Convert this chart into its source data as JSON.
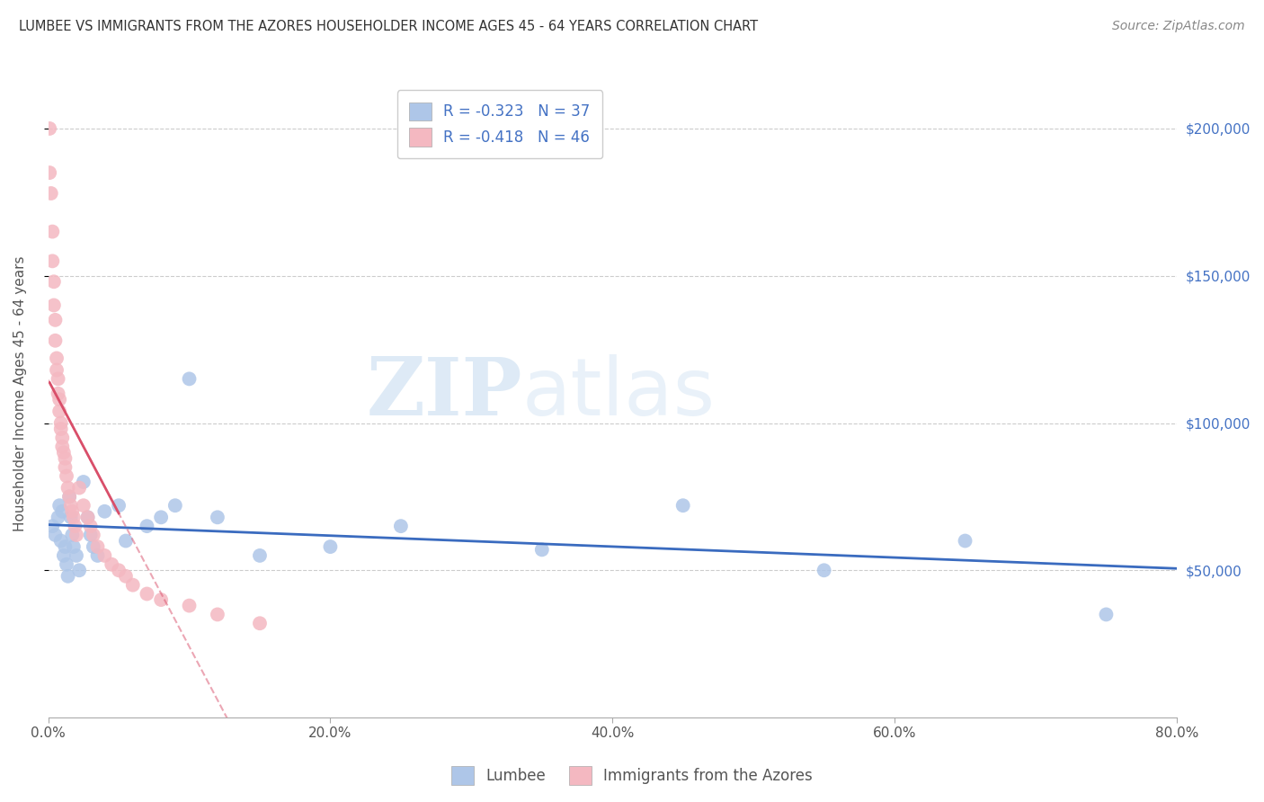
{
  "title": "LUMBEE VS IMMIGRANTS FROM THE AZORES HOUSEHOLDER INCOME AGES 45 - 64 YEARS CORRELATION CHART",
  "source": "Source: ZipAtlas.com",
  "ylabel": "Householder Income Ages 45 - 64 years",
  "xlim": [
    0.0,
    0.8
  ],
  "ylim": [
    0,
    220000
  ],
  "xtick_labels": [
    "0.0%",
    "20.0%",
    "40.0%",
    "60.0%",
    "80.0%"
  ],
  "xtick_positions": [
    0.0,
    0.2,
    0.4,
    0.6,
    0.8
  ],
  "ytick_positions": [
    50000,
    100000,
    150000,
    200000
  ],
  "right_ytick_labels": [
    "$50,000",
    "$100,000",
    "$150,000",
    "$200,000"
  ],
  "right_ytick_positions": [
    50000,
    100000,
    150000,
    200000
  ],
  "watermark_zip": "ZIP",
  "watermark_atlas": "atlas",
  "legend_label1": "R = -0.323   N = 37",
  "legend_label2": "R = -0.418   N = 46",
  "lumbee_color": "#aec6e8",
  "lumbee_line_color": "#3a6bbf",
  "azores_color": "#f4b8c1",
  "azores_line_color": "#d94f6a",
  "background_color": "#ffffff",
  "grid_color": "#cccccc",
  "lumbee_x": [
    0.003,
    0.005,
    0.007,
    0.008,
    0.009,
    0.01,
    0.011,
    0.012,
    0.013,
    0.014,
    0.015,
    0.016,
    0.017,
    0.018,
    0.02,
    0.022,
    0.025,
    0.028,
    0.03,
    0.032,
    0.035,
    0.04,
    0.05,
    0.055,
    0.07,
    0.08,
    0.09,
    0.1,
    0.12,
    0.15,
    0.2,
    0.25,
    0.35,
    0.45,
    0.55,
    0.65,
    0.75
  ],
  "lumbee_y": [
    65000,
    62000,
    68000,
    72000,
    60000,
    70000,
    55000,
    58000,
    52000,
    48000,
    75000,
    68000,
    62000,
    58000,
    55000,
    50000,
    80000,
    68000,
    62000,
    58000,
    55000,
    70000,
    72000,
    60000,
    65000,
    68000,
    72000,
    115000,
    68000,
    55000,
    58000,
    65000,
    57000,
    72000,
    50000,
    60000,
    35000
  ],
  "azores_x": [
    0.001,
    0.001,
    0.002,
    0.003,
    0.003,
    0.004,
    0.004,
    0.005,
    0.005,
    0.006,
    0.006,
    0.007,
    0.007,
    0.008,
    0.008,
    0.009,
    0.009,
    0.01,
    0.01,
    0.011,
    0.012,
    0.012,
    0.013,
    0.014,
    0.015,
    0.016,
    0.017,
    0.018,
    0.019,
    0.02,
    0.022,
    0.025,
    0.028,
    0.03,
    0.032,
    0.035,
    0.04,
    0.045,
    0.05,
    0.055,
    0.06,
    0.07,
    0.08,
    0.1,
    0.12,
    0.15
  ],
  "azores_y": [
    200000,
    185000,
    178000,
    165000,
    155000,
    148000,
    140000,
    135000,
    128000,
    122000,
    118000,
    115000,
    110000,
    108000,
    104000,
    100000,
    98000,
    95000,
    92000,
    90000,
    88000,
    85000,
    82000,
    78000,
    75000,
    72000,
    70000,
    68000,
    65000,
    62000,
    78000,
    72000,
    68000,
    65000,
    62000,
    58000,
    55000,
    52000,
    50000,
    48000,
    45000,
    42000,
    40000,
    38000,
    35000,
    32000
  ]
}
